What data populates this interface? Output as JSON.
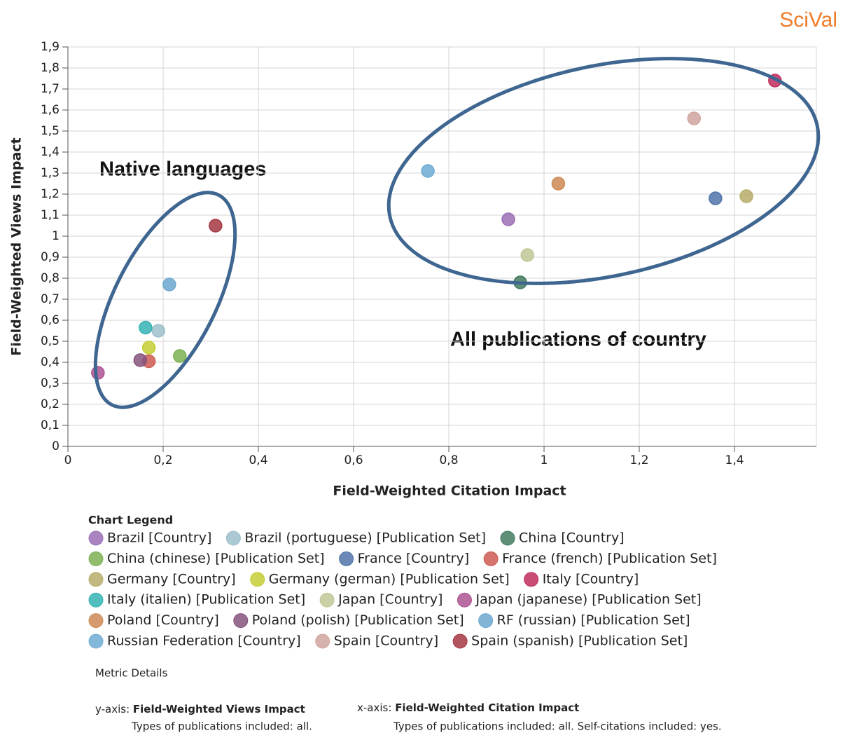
{
  "brand": "SciVal",
  "chart_data": {
    "type": "scatter",
    "xlabel": "Field-Weighted Citation Impact",
    "ylabel": "Field-Weighted Views Impact",
    "annotations": [
      "Native languages",
      "All publications of country"
    ],
    "legend_title": "Chart Legend",
    "grid": true,
    "xlim": [
      0,
      1.572
    ],
    "ylim": [
      0,
      1.9
    ],
    "xticks": [
      0,
      {
        "value": 0.2,
        "label": "0,2"
      },
      {
        "value": 0.4,
        "label": "0,4"
      },
      {
        "value": 0.6,
        "label": "0,6"
      },
      {
        "value": 0.8,
        "label": "0,8"
      },
      1,
      {
        "value": 1.2,
        "label": "1,2"
      },
      {
        "value": 1.4,
        "label": "1,4"
      }
    ],
    "yticks": [
      0,
      {
        "value": 0.1,
        "label": "0,1"
      },
      {
        "value": 0.2,
        "label": "0,2"
      },
      {
        "value": 0.3,
        "label": "0,3"
      },
      {
        "value": 0.4,
        "label": "0,4"
      },
      {
        "value": 0.5,
        "label": "0,5"
      },
      {
        "value": 0.6,
        "label": "0,6"
      },
      {
        "value": 0.7,
        "label": "0,7"
      },
      {
        "value": 0.8,
        "label": "0,8"
      },
      {
        "value": 0.9,
        "label": "0,9"
      },
      1,
      {
        "value": 1.1,
        "label": "1,1"
      },
      {
        "value": 1.2,
        "label": "1,2"
      },
      {
        "value": 1.3,
        "label": "1,3"
      },
      {
        "value": 1.4,
        "label": "1,4"
      },
      {
        "value": 1.5,
        "label": "1,5"
      },
      {
        "value": 1.6,
        "label": "1,6"
      },
      {
        "value": 1.7,
        "label": "1,7"
      },
      {
        "value": 1.8,
        "label": "1,8"
      },
      {
        "value": 1.9,
        "label": "1,9"
      }
    ],
    "series": [
      {
        "name": "Brazil [Country]",
        "color": "#b583d6",
        "x": [
          0.925
        ],
        "values": [
          1.08
        ]
      },
      {
        "name": "Brazil (portuguese) [Publication Set]",
        "color": "#b9e1ee",
        "x": [
          0.19
        ],
        "values": [
          0.55
        ]
      },
      {
        "name": "China [Country]",
        "color": "#4f9070",
        "x": [
          0.95
        ],
        "values": [
          0.78
        ]
      },
      {
        "name": "China (chinese) [Publication Set]",
        "color": "#92d160",
        "x": [
          0.235
        ],
        "values": [
          0.43
        ]
      },
      {
        "name": "France [Country]",
        "color": "#5e89c8",
        "x": [
          1.36
        ],
        "values": [
          1.18
        ]
      },
      {
        "name": "France (french) [Publication Set]",
        "color": "#f26b63",
        "x": [
          0.17
        ],
        "values": [
          0.405
        ]
      },
      {
        "name": "Germany [Country]",
        "color": "#d6cb7c",
        "x": [
          1.425
        ],
        "values": [
          1.19
        ]
      },
      {
        "name": "Germany (german) [Publication Set]",
        "color": "#e6f23e",
        "x": [
          0.17
        ],
        "values": [
          0.47
        ]
      },
      {
        "name": "Italy [Country]",
        "color": "#e2356d",
        "x": [
          1.485
        ],
        "values": [
          1.74
        ]
      },
      {
        "name": "Italy (italien) [Publication Set]",
        "color": "#3ed2d3",
        "x": [
          0.163
        ],
        "values": [
          0.565
        ]
      },
      {
        "name": "Japan [Country]",
        "color": "#e4eab0",
        "x": [
          0.965
        ],
        "values": [
          0.91
        ]
      },
      {
        "name": "Japan (japanese) [Publication Set]",
        "color": "#cb62ab",
        "x": [
          0.063
        ],
        "values": [
          0.35
        ]
      },
      {
        "name": "Poland [Country]",
        "color": "#f2a264",
        "x": [
          1.03
        ],
        "values": [
          1.25
        ]
      },
      {
        "name": "Poland (polish) [Publication Set]",
        "color": "#9e6293",
        "x": [
          0.152
        ],
        "values": [
          0.41
        ]
      },
      {
        "name": "RF (russian) [Publication Set]",
        "color": "#7fc6f2",
        "x": [
          0.213
        ],
        "values": [
          0.77
        ]
      },
      {
        "name": "Russian Federation [Country]",
        "color": "#82caf9",
        "x": [
          0.756
        ],
        "values": [
          1.31
        ]
      },
      {
        "name": "Spain [Country]",
        "color": "#f5c2ba",
        "x": [
          1.315
        ],
        "values": [
          1.56
        ]
      },
      {
        "name": "Spain (spanish) [Publication Set]",
        "color": "#c2414f",
        "x": [
          0.31
        ],
        "values": [
          1.05
        ]
      }
    ]
  },
  "metric_details": {
    "title": "Metric Details",
    "y_prefix": "y-axis:",
    "y_metric": "Field-Weighted Views Impact",
    "y_note": "Types of publications included: all.",
    "x_prefix": "x-axis:",
    "x_metric": "Field-Weighted Citation Impact",
    "x_note": "Types of publications included: all. Self-citations included: yes."
  }
}
